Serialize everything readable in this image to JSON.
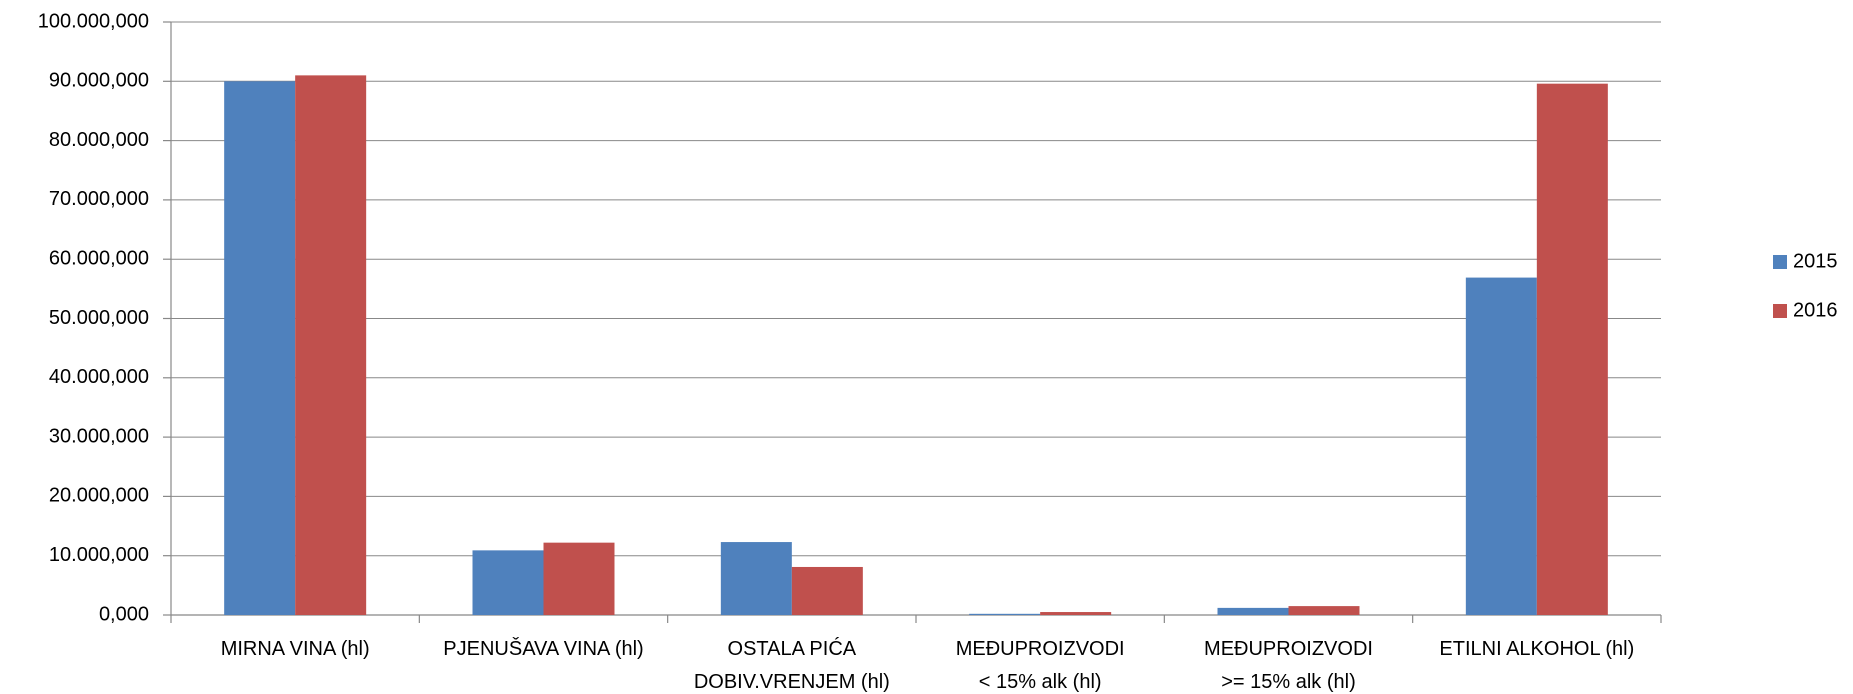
{
  "chart_data": {
    "type": "bar",
    "categories": [
      [
        "MIRNA VINA (hl)"
      ],
      [
        "PJENUŠAVA VINA (hl)"
      ],
      [
        "OSTALA PIĆA",
        "DOBIV.VRENJEM (hl)"
      ],
      [
        "MEĐUPROIZVODI",
        "<  15% alk (hl)"
      ],
      [
        "MEĐUPROIZVODI",
        ">= 15% alk (hl)"
      ],
      [
        "ETILNI ALKOHOL (hl)"
      ]
    ],
    "series": [
      {
        "name": "2015",
        "color": "#4f81bd",
        "values": [
          90000000,
          10900000,
          12300000,
          200000,
          1200000,
          56900000
        ]
      },
      {
        "name": "2016",
        "color": "#c0504d",
        "values": [
          91000000,
          12200000,
          8100000,
          500000,
          1500000,
          89600000
        ]
      }
    ],
    "ylim": [
      0,
      100000000
    ],
    "yticks": [
      {
        "value": 0,
        "label": "0,000"
      },
      {
        "value": 10000000,
        "label": "10.000,000"
      },
      {
        "value": 20000000,
        "label": "20.000,000"
      },
      {
        "value": 30000000,
        "label": "30.000,000"
      },
      {
        "value": 40000000,
        "label": "40.000,000"
      },
      {
        "value": 50000000,
        "label": "50.000,000"
      },
      {
        "value": 60000000,
        "label": "60.000,000"
      },
      {
        "value": 70000000,
        "label": "70.000,000"
      },
      {
        "value": 80000000,
        "label": "80.000,000"
      },
      {
        "value": 90000000,
        "label": "90.000,000"
      },
      {
        "value": 100000000,
        "label": "100.000,000"
      }
    ],
    "grid": true,
    "legend": "right"
  }
}
